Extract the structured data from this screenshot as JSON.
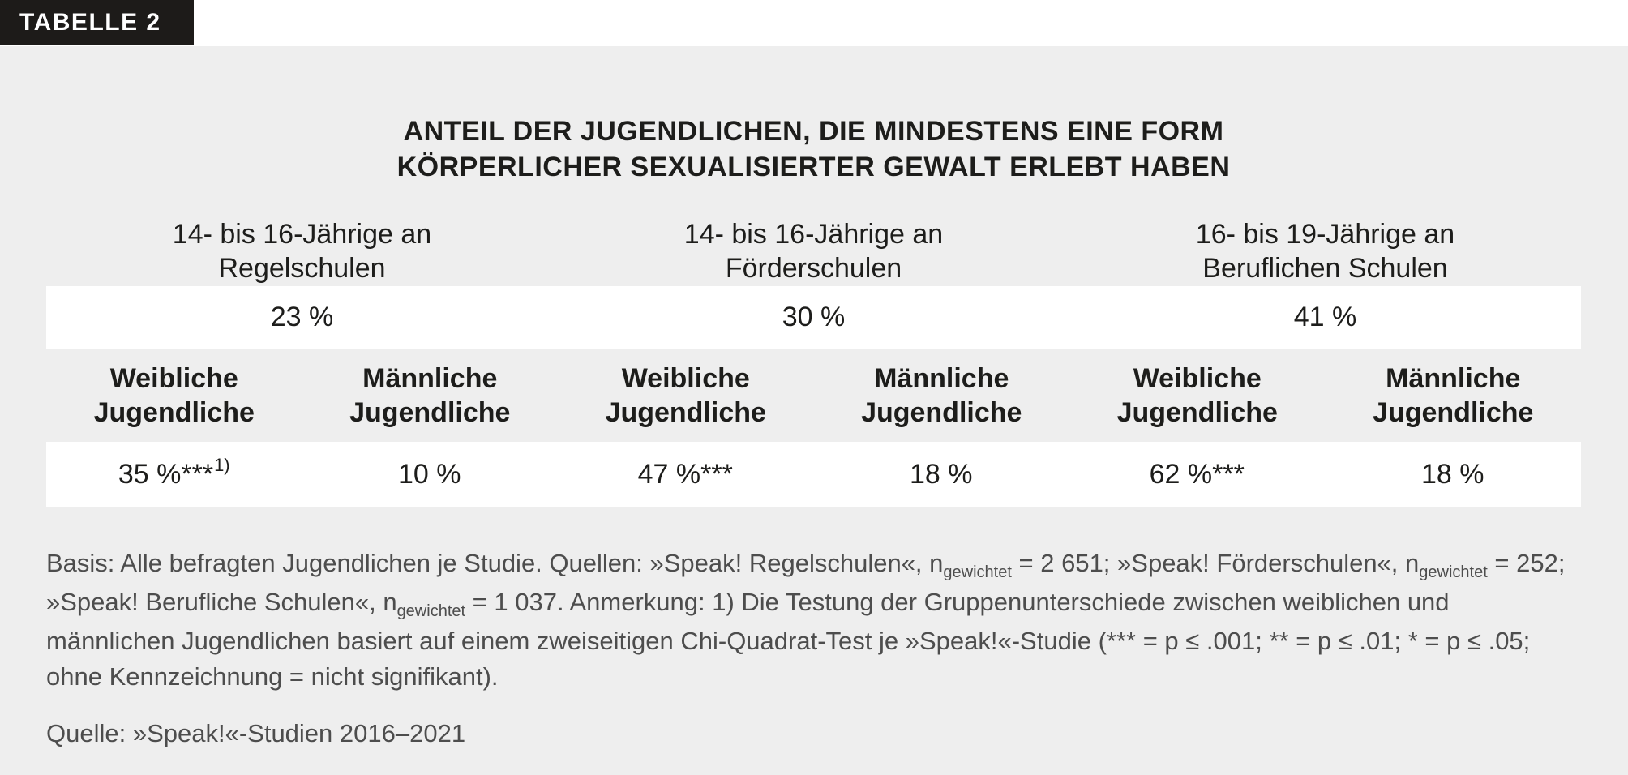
{
  "tab_label": "TABELLE 2",
  "title": {
    "line1": "ANTEIL DER JUGENDLICHEN, DIE MINDESTENS EINE FORM",
    "line2": "KÖRPERLICHER SEXUALISIERTER GEWALT ERLEBT HABEN"
  },
  "groups": [
    {
      "header_line1": "14- bis 16-Jährige an",
      "header_line2": "Regelschulen",
      "total": "23 %"
    },
    {
      "header_line1": "14- bis 16-Jährige an",
      "header_line2": "Förderschulen",
      "total": "30 %"
    },
    {
      "header_line1": "16- bis 19-Jährige an",
      "header_line2": "Beruflichen Schulen",
      "total": "41 %"
    }
  ],
  "subcolumns": [
    {
      "line1": "Weibliche",
      "line2": "Jugendliche",
      "value": "35 %***",
      "value_sup": "1)"
    },
    {
      "line1": "Männliche",
      "line2": "Jugendliche",
      "value": "10 %",
      "value_sup": ""
    },
    {
      "line1": "Weibliche",
      "line2": "Jugendliche",
      "value": "47 %***",
      "value_sup": ""
    },
    {
      "line1": "Männliche",
      "line2": "Jugendliche",
      "value": "18 %",
      "value_sup": ""
    },
    {
      "line1": "Weibliche",
      "line2": "Jugendliche",
      "value": "62 %***",
      "value_sup": ""
    },
    {
      "line1": "Männliche",
      "line2": "Jugendliche",
      "value": "18 %",
      "value_sup": ""
    }
  ],
  "footnote": {
    "seg1": "Basis: Alle befragten Jugendlichen je Studie. Quellen: »Speak! Regelschulen«, n",
    "sub1": "gewichtet",
    "seg2": " = 2 651; »Speak! Förderschulen«, n",
    "sub2": "gewichtet",
    "seg3": " = 252; »Speak! Berufliche Schulen«, n",
    "sub3": "gewichtet",
    "seg4": " = 1 037. Anmerkung: 1) Die Testung der Gruppenunterschiede zwischen weiblichen und männlichen Jugendlichen basiert auf einem zweiseitigen Chi-Quadrat-Test je »Speak!«-Studie (*** = p ≤ .001; ** = p ≤ .01; * = p ≤ .05; ohne Kennzeichnung = nicht signifikant)."
  },
  "source": "Quelle: »Speak!«-Studien 2016–2021",
  "colors": {
    "page_background": "#ffffff",
    "sheet_background": "#eeeeee",
    "label_background": "#1d1b19",
    "label_text": "#ffffff",
    "table_text": "#1d1d1b",
    "row_background": "#ffffff",
    "footnote_text": "#4d4d4d"
  },
  "chart_data": {
    "type": "table",
    "title": "Anteil der Jugendlichen, die mindestens eine Form körperlicher sexualisierter Gewalt erlebt haben",
    "unit": "percent",
    "groups": [
      {
        "label": "14- bis 16-Jährige an Regelschulen",
        "total_percent": 23,
        "weibliche_jugendliche_percent": 35,
        "weibliche_significance": "***1)",
        "maennliche_jugendliche_percent": 10,
        "maennliche_significance": ""
      },
      {
        "label": "14- bis 16-Jährige an Förderschulen",
        "total_percent": 30,
        "weibliche_jugendliche_percent": 47,
        "weibliche_significance": "***",
        "maennliche_jugendliche_percent": 18,
        "maennliche_significance": ""
      },
      {
        "label": "16- bis 19-Jährige an Beruflichen Schulen",
        "total_percent": 41,
        "weibliche_jugendliche_percent": 62,
        "weibliche_significance": "***",
        "maennliche_jugendliche_percent": 18,
        "maennliche_significance": ""
      }
    ],
    "notes": "n_gewichtet: Regelschulen = 2 651; Förderschulen = 252; Berufliche Schulen = 1 037. Zweiseitiger Chi-Quadrat-Test je Studie: *** = p ≤ .001; ** = p ≤ .01; * = p ≤ .05; ohne Kennzeichnung = nicht signifikant.",
    "source": "Quelle: »Speak!«-Studien 2016–2021"
  }
}
